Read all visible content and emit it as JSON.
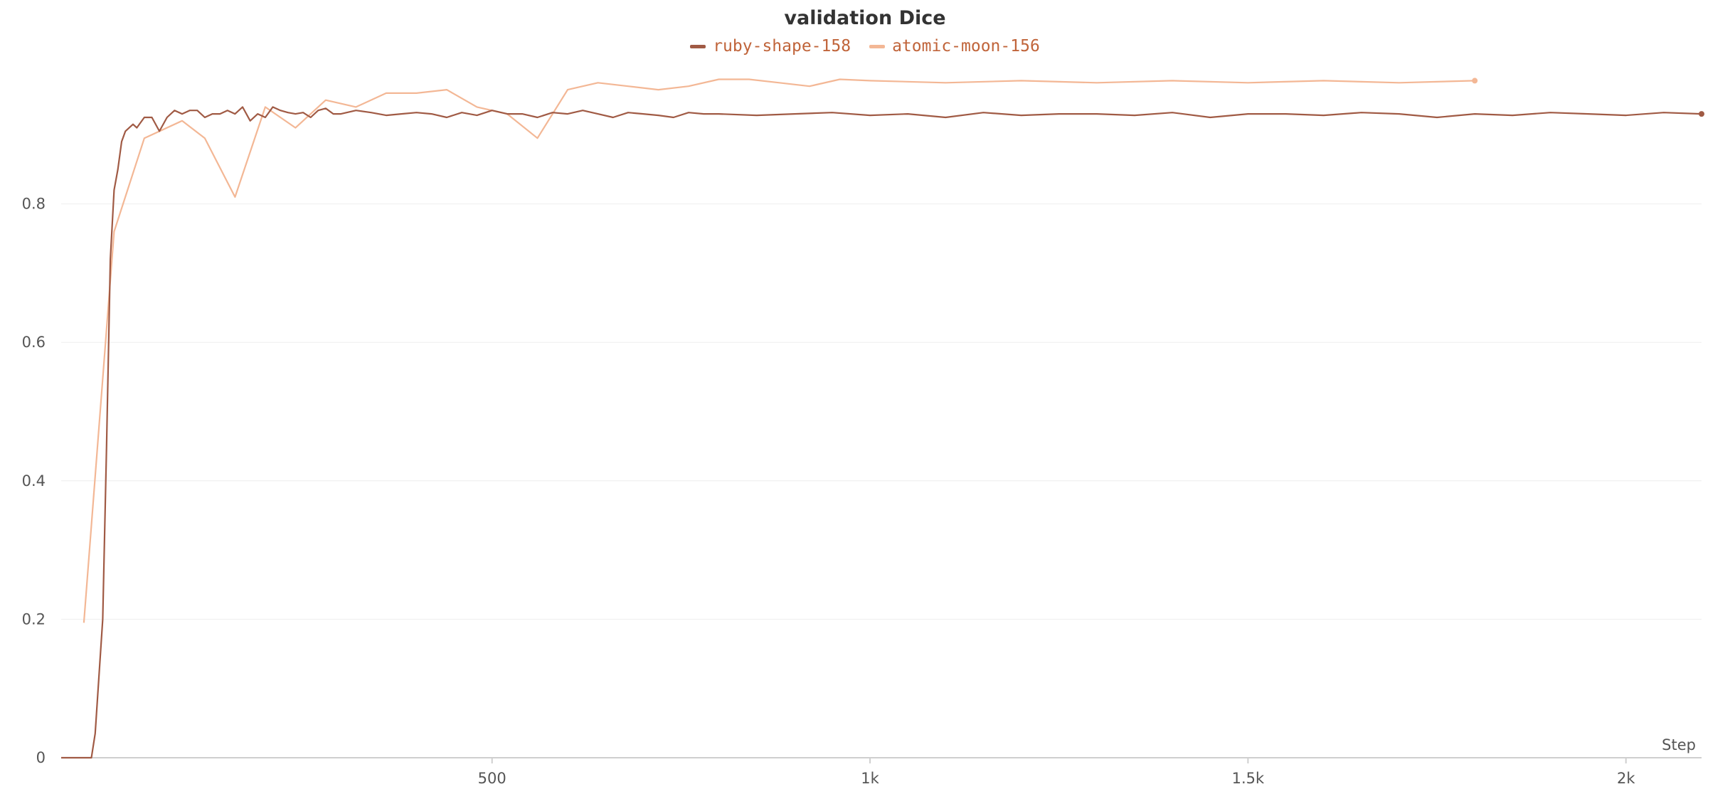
{
  "chart_data": {
    "type": "line",
    "title": "validation Dice",
    "xlabel": "Step",
    "ylabel": "",
    "xlim": [
      -70,
      2100
    ],
    "ylim": [
      0,
      1.0
    ],
    "x_ticks": [
      500,
      1000,
      1500,
      2000
    ],
    "x_tick_labels": [
      "500",
      "1k",
      "1.5k",
      "2k"
    ],
    "y_ticks": [
      0,
      0.2,
      0.4,
      0.6,
      0.8
    ],
    "y_tick_labels": [
      "0",
      "0.2",
      "0.4",
      "0.6",
      "0.8"
    ],
    "grid": true,
    "legend_position": "top-center",
    "series": [
      {
        "name": "ruby-shape-158",
        "color": "#a05a44",
        "x": [
          -70,
          -30,
          -25,
          -15,
          -10,
          -5,
          0,
          5,
          10,
          15,
          20,
          25,
          30,
          40,
          50,
          60,
          70,
          80,
          90,
          100,
          110,
          120,
          130,
          140,
          150,
          160,
          170,
          180,
          190,
          200,
          210,
          220,
          230,
          240,
          250,
          260,
          270,
          280,
          290,
          300,
          320,
          340,
          360,
          380,
          400,
          420,
          440,
          460,
          480,
          500,
          520,
          540,
          560,
          580,
          600,
          620,
          640,
          660,
          680,
          700,
          720,
          740,
          760,
          780,
          800,
          850,
          900,
          950,
          1000,
          1050,
          1100,
          1150,
          1200,
          1250,
          1300,
          1350,
          1400,
          1450,
          1500,
          1550,
          1600,
          1650,
          1700,
          1750,
          1800,
          1850,
          1900,
          1950,
          2000,
          2050,
          2100
        ],
        "values": [
          0,
          0,
          0.035,
          0.2,
          0.45,
          0.72,
          0.82,
          0.85,
          0.89,
          0.905,
          0.91,
          0.915,
          0.91,
          0.925,
          0.925,
          0.905,
          0.925,
          0.935,
          0.93,
          0.935,
          0.935,
          0.925,
          0.93,
          0.93,
          0.935,
          0.93,
          0.94,
          0.92,
          0.93,
          0.925,
          0.94,
          0.935,
          0.932,
          0.93,
          0.932,
          0.925,
          0.935,
          0.938,
          0.93,
          0.93,
          0.935,
          0.932,
          0.928,
          0.93,
          0.932,
          0.93,
          0.925,
          0.932,
          0.928,
          0.935,
          0.93,
          0.93,
          0.925,
          0.932,
          0.93,
          0.935,
          0.93,
          0.925,
          0.932,
          0.93,
          0.928,
          0.925,
          0.932,
          0.93,
          0.93,
          0.928,
          0.93,
          0.932,
          0.928,
          0.93,
          0.925,
          0.932,
          0.928,
          0.93,
          0.93,
          0.928,
          0.932,
          0.925,
          0.93,
          0.93,
          0.928,
          0.932,
          0.93,
          0.925,
          0.93,
          0.928,
          0.932,
          0.93,
          0.928,
          0.932,
          0.93
        ]
      },
      {
        "name": "atomic-moon-156",
        "color": "#f3b795",
        "x": [
          -40,
          0,
          40,
          90,
          120,
          160,
          200,
          240,
          280,
          320,
          360,
          400,
          440,
          480,
          520,
          560,
          600,
          640,
          680,
          720,
          760,
          800,
          840,
          880,
          920,
          960,
          1000,
          1100,
          1200,
          1300,
          1400,
          1500,
          1600,
          1700,
          1800
        ],
        "values": [
          0.195,
          0.76,
          0.895,
          0.92,
          0.895,
          0.81,
          0.94,
          0.91,
          0.95,
          0.94,
          0.96,
          0.96,
          0.965,
          0.94,
          0.93,
          0.895,
          0.965,
          0.975,
          0.97,
          0.965,
          0.97,
          0.98,
          0.98,
          0.975,
          0.97,
          0.98,
          0.978,
          0.975,
          0.978,
          0.975,
          0.978,
          0.975,
          0.978,
          0.975,
          0.978
        ]
      }
    ]
  }
}
